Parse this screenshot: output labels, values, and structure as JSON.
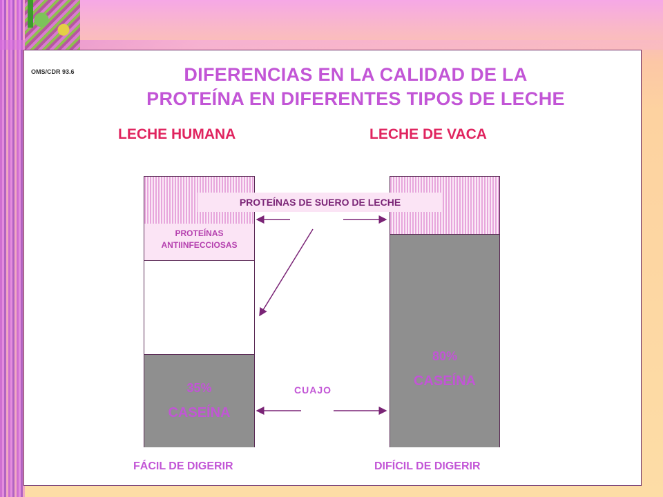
{
  "reference": "OMS/CDR 93.6",
  "title_line1": "DIFERENCIAS EN LA CALIDAD DE LA",
  "title_line2": "PROTEÍNA EN DIFERENTES TIPOS DE LECHE",
  "human": {
    "heading": "LECHE HUMANA",
    "antiinfective_line1": "PROTEÍNAS",
    "antiinfective_line2": "ANTIINFECCIOSAS",
    "casein_percent": "35%",
    "casein_label": "CASEÍNA",
    "footer": "FÁCIL DE DIGERIR"
  },
  "cow": {
    "heading": "LECHE DE VACA",
    "casein_percent": "80%",
    "casein_label": "CASEÍNA",
    "footer": "DIFÍCIL DE DIGERIR"
  },
  "whey_label": "PROTEÍNAS DE SUERO DE LECHE",
  "curd_label": "CUAJO",
  "colors": {
    "title": "#c255d6",
    "heading": "#e0245f",
    "casein_fill": "#8f8f8f",
    "whey_stripe": "#e7a6dc",
    "arrow": "#7a2476"
  }
}
